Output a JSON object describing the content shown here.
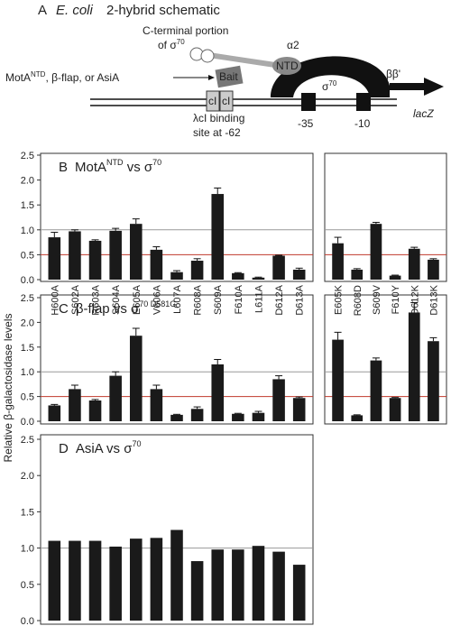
{
  "schematic": {
    "panel": "A",
    "title_italic": "E. coli",
    "title": "2-hybrid schematic",
    "cterm1": "C-terminal portion",
    "cterm2": "of σ",
    "cterm2_sup": "70",
    "alpha": "α2",
    "ntd": "NTD",
    "bait_src": "MotA",
    "bait_src_sup": "NTD",
    "bait_src_rest": ", β-flap, or AsiA",
    "bait": "Bait",
    "ci1": "cI",
    "ci2": "cI",
    "sigma": "σ",
    "sigma_sup": "70",
    "beta": "ββ'",
    "lacz": "lacZ",
    "site1": "λcI binding",
    "site2": "site at -62",
    "m35": "-35",
    "m10": "-10"
  },
  "y_label": "Relative β-galactosidase levels",
  "chart_data": [
    {
      "type": "bar",
      "panel": "B",
      "title": [
        {
          "text": "MotA"
        },
        {
          "text": "NTD",
          "sup": true
        },
        {
          "text": " vs σ"
        },
        {
          "text": "70",
          "sup": true
        }
      ],
      "categories": [
        "H600A",
        "S602A",
        "R603A",
        "S604A",
        "E605A",
        "V606A",
        "L607A",
        "R608A",
        "S609A",
        "F610A",
        "L611A",
        "D612A",
        "D613A"
      ],
      "values": [
        0.85,
        0.97,
        0.78,
        0.98,
        1.12,
        0.6,
        0.15,
        0.38,
        1.72,
        0.13,
        0.04,
        0.48,
        0.2
      ],
      "errors": [
        0.1,
        0.03,
        0.02,
        0.05,
        0.1,
        0.06,
        0.03,
        0.04,
        0.12,
        0.01,
        0.01,
        0.01,
        0.03
      ],
      "color": "#1a1a1a",
      "ylim": [
        0,
        2.5
      ],
      "yticks": [
        {
          "value": 0,
          "label": "0.0"
        },
        {
          "value": 0.5,
          "label": "0.5"
        },
        {
          "value": 1,
          "label": "1.0"
        },
        {
          "value": 1.5,
          "label": "1.5"
        },
        {
          "value": 2,
          "label": "2.0"
        },
        {
          "value": 2.5,
          "label": "2.5"
        }
      ],
      "reference_lines": [
        {
          "value": 1,
          "color": "#999999"
        },
        {
          "value": 0.5,
          "color": "#c0392b"
        }
      ]
    },
    {
      "type": "bar",
      "categories": [
        "E605K",
        "R608D",
        "S609V",
        "F610Y",
        "D612K",
        "D613K"
      ],
      "values": [
        0.73,
        0.2,
        1.12,
        0.08,
        0.62,
        0.4
      ],
      "errors": [
        0.12,
        0.02,
        0.03,
        0.01,
        0.03,
        0.02
      ],
      "color": "#1a1a1a",
      "ylim": [
        0,
        2.5
      ],
      "reference_lines": [
        {
          "value": 1,
          "color": "#999999"
        },
        {
          "value": 0.5,
          "color": "#c0392b"
        }
      ]
    },
    {
      "type": "bar",
      "panel": "C",
      "title": [
        {
          "text": "β-flap vs σ"
        },
        {
          "text": "70 D581G",
          "sup": true
        }
      ],
      "categories": [
        null,
        null,
        null,
        null,
        null,
        null,
        null,
        null,
        null,
        null,
        null,
        null,
        null
      ],
      "values": [
        0.32,
        0.65,
        0.42,
        0.92,
        1.73,
        0.65,
        0.13,
        0.25,
        1.15,
        0.15,
        0.17,
        0.85,
        0.47
      ],
      "errors": [
        0.02,
        0.08,
        0.02,
        0.08,
        0.15,
        0.08,
        0.01,
        0.04,
        0.1,
        0.01,
        0.03,
        0.07,
        0.02
      ],
      "color": "#1a1a1a",
      "ylim": [
        0,
        2.5
      ],
      "yticks": [
        {
          "value": 0,
          "label": "0.0"
        },
        {
          "value": 0.5,
          "label": "0.5"
        },
        {
          "value": 1,
          "label": "1.0"
        },
        {
          "value": 1.5,
          "label": "1.5"
        },
        {
          "value": 2,
          "label": "2.0"
        },
        {
          "value": 2.5,
          "label": "2.5"
        }
      ],
      "reference_lines": [
        {
          "value": 1,
          "color": "#999999"
        },
        {
          "value": 0.5,
          "color": "#c0392b"
        }
      ]
    },
    {
      "type": "bar",
      "categories": [
        null,
        null,
        null,
        null,
        null,
        null
      ],
      "values": [
        1.65,
        0.12,
        1.23,
        0.47,
        2.2,
        1.62
      ],
      "errors": [
        0.15,
        0.01,
        0.05,
        0.01,
        0.2,
        0.07
      ],
      "color": "#1a1a1a",
      "ylim": [
        0,
        2.5
      ],
      "reference_lines": [
        {
          "value": 1,
          "color": "#999999"
        },
        {
          "value": 0.5,
          "color": "#c0392b"
        }
      ]
    },
    {
      "type": "bar",
      "panel": "D",
      "title": [
        {
          "text": "AsiA vs σ"
        },
        {
          "text": "70",
          "sup": true
        }
      ],
      "categories": [
        null,
        null,
        null,
        null,
        null,
        null,
        null,
        null,
        null,
        null,
        null,
        null,
        null
      ],
      "values": [
        1.1,
        1.1,
        1.1,
        1.02,
        1.13,
        1.14,
        1.25,
        0.82,
        0.98,
        0.98,
        1.03,
        0.95,
        0.77
      ],
      "color": "#1a1a1a",
      "ylim": [
        0,
        2.5
      ],
      "yticks": [
        {
          "value": 0,
          "label": "0.0"
        },
        {
          "value": 0.5,
          "label": "0.5"
        },
        {
          "value": 1,
          "label": "1.0"
        },
        {
          "value": 1.5,
          "label": "1.5"
        },
        {
          "value": 2,
          "label": "2.0"
        },
        {
          "value": 2.5,
          "label": "2.5"
        }
      ],
      "reference_lines": [
        {
          "value": 1,
          "color": "#999999"
        }
      ]
    }
  ]
}
